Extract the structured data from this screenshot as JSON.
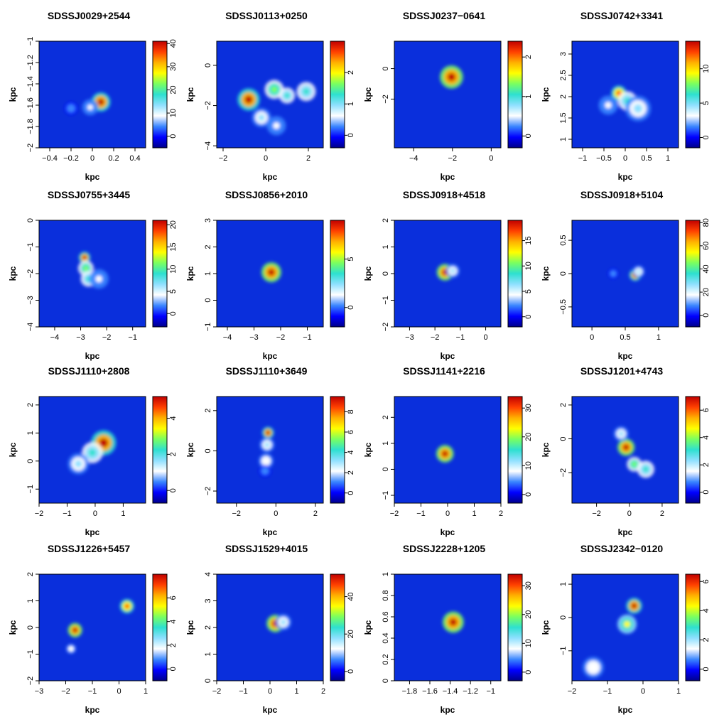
{
  "chart_data": {
    "type": "heatmap",
    "colormap": [
      "#00008b",
      "#0000ff",
      "#3a86ff",
      "#ffffff",
      "#8fe0ff",
      "#2ee0d0",
      "#7aff60",
      "#ffff00",
      "#ffb000",
      "#ff4000",
      "#c00000"
    ],
    "background": "#0a2fdc",
    "panels": [
      {
        "title": "SDSSJ0029+2544",
        "xlabel": "kpc",
        "ylabel": "kpc",
        "xlim": [
          -0.5,
          0.5
        ],
        "ylim": [
          -2.0,
          -1.0
        ],
        "xticks": [
          -0.4,
          -0.2,
          0,
          0.2,
          0.4
        ],
        "xticklabels": [
          "−0.4",
          "−0.2",
          "0",
          "0.2",
          "0.4"
        ],
        "yticks": [
          -2.0,
          -1.8,
          -1.6,
          -1.4,
          -1.2,
          -1.0
        ],
        "yticklabels": [
          "−2",
          "−1.8",
          "−1.6",
          "−1.4",
          "−1.2",
          "−1"
        ],
        "cbar_lim": [
          -5,
          41
        ],
        "cbar_ticks": [
          0,
          10,
          20,
          30,
          40
        ],
        "cbar_ticklabels": [
          "0",
          "10",
          "20",
          "30",
          "40"
        ],
        "blobs": [
          {
            "x": 0.08,
            "y": -1.57,
            "r": 0.06,
            "v": 40
          },
          {
            "x": -0.02,
            "y": -1.62,
            "r": 0.05,
            "v": 8
          },
          {
            "x": -0.2,
            "y": -1.63,
            "r": 0.04,
            "v": 4
          }
        ]
      },
      {
        "title": "SDSSJ0113+0250",
        "xlabel": "kpc",
        "ylabel": "kpc",
        "xlim": [
          -2.3,
          2.7
        ],
        "ylim": [
          -4.1,
          1.2
        ],
        "xticks": [
          -2,
          0,
          2
        ],
        "xticklabels": [
          "−2",
          "0",
          "2"
        ],
        "yticks": [
          -4,
          -2,
          0
        ],
        "yticklabels": [
          "−4",
          "−2",
          "0"
        ],
        "cbar_lim": [
          -0.4,
          3.0
        ],
        "cbar_ticks": [
          0,
          1,
          2
        ],
        "cbar_ticklabels": [
          "0",
          "1",
          "2"
        ],
        "blobs": [
          {
            "x": -0.8,
            "y": -1.7,
            "r": 0.35,
            "v": 2.9
          },
          {
            "x": 0.4,
            "y": -1.2,
            "r": 0.3,
            "v": 1.6
          },
          {
            "x": 1.0,
            "y": -1.5,
            "r": 0.25,
            "v": 1.2
          },
          {
            "x": 1.9,
            "y": -1.3,
            "r": 0.3,
            "v": 1.3
          },
          {
            "x": -0.2,
            "y": -2.6,
            "r": 0.3,
            "v": 0.8
          },
          {
            "x": 0.5,
            "y": -3.0,
            "r": 0.3,
            "v": 0.6
          }
        ]
      },
      {
        "title": "SDSSJ0237−0641",
        "xlabel": "kpc",
        "ylabel": "kpc",
        "xlim": [
          -5.0,
          0.5
        ],
        "ylim": [
          -5.2,
          1.8
        ],
        "xticks": [
          -4,
          -2,
          0
        ],
        "xticklabels": [
          "−4",
          "−2",
          "0"
        ],
        "yticks": [
          -2,
          0
        ],
        "yticklabels": [
          "−2",
          "0"
        ],
        "cbar_lim": [
          -0.3,
          2.4
        ],
        "cbar_ticks": [
          0,
          1,
          2
        ],
        "cbar_ticklabels": [
          "0",
          "1",
          "2"
        ],
        "blobs": [
          {
            "x": -2.05,
            "y": -0.55,
            "r": 0.4,
            "v": 2.4
          }
        ]
      },
      {
        "title": "SDSSJ0742+3341",
        "xlabel": "kpc",
        "ylabel": "kpc",
        "xlim": [
          -1.25,
          1.25
        ],
        "ylim": [
          0.8,
          3.3
        ],
        "xticks": [
          -1,
          -0.5,
          0,
          0.5,
          1
        ],
        "xticklabels": [
          "−1",
          "−0.5",
          "0",
          "0.5",
          "1"
        ],
        "yticks": [
          1.0,
          1.5,
          2.0,
          2.5,
          3.0
        ],
        "yticklabels": [
          "1",
          "1.5",
          "2",
          "2.5",
          "3"
        ],
        "cbar_lim": [
          -1.5,
          14
        ],
        "cbar_ticks": [
          0,
          5,
          10
        ],
        "cbar_ticklabels": [
          "0",
          "5",
          "10"
        ],
        "blobs": [
          {
            "x": -0.15,
            "y": 2.08,
            "r": 0.12,
            "v": 13
          },
          {
            "x": 0.05,
            "y": 1.9,
            "r": 0.15,
            "v": 6
          },
          {
            "x": 0.3,
            "y": 1.72,
            "r": 0.2,
            "v": 4
          },
          {
            "x": -0.4,
            "y": 1.8,
            "r": 0.15,
            "v": 3
          }
        ]
      },
      {
        "title": "SDSSJ0755+3445",
        "xlabel": "kpc",
        "ylabel": "kpc",
        "xlim": [
          -4.6,
          -0.5
        ],
        "ylim": [
          -4.0,
          0.0
        ],
        "xticks": [
          -4,
          -3,
          -2,
          -1
        ],
        "xticklabels": [
          "−4",
          "−3",
          "−2",
          "−1"
        ],
        "yticks": [
          -4,
          -3,
          -2,
          -1,
          0
        ],
        "yticklabels": [
          "−4",
          "−3",
          "−2",
          "−1",
          "0"
        ],
        "cbar_lim": [
          -3,
          21
        ],
        "cbar_ticks": [
          0,
          5,
          10,
          15,
          20
        ],
        "cbar_ticklabels": [
          "0",
          "5",
          "10",
          "15",
          "20"
        ],
        "blobs": [
          {
            "x": -2.85,
            "y": -1.4,
            "r": 0.15,
            "v": 20
          },
          {
            "x": -2.8,
            "y": -1.8,
            "r": 0.2,
            "v": 12
          },
          {
            "x": -2.7,
            "y": -2.2,
            "r": 0.2,
            "v": 8
          },
          {
            "x": -2.3,
            "y": -2.2,
            "r": 0.25,
            "v": 4
          }
        ]
      },
      {
        "title": "SDSSJ0856+2010",
        "xlabel": "kpc",
        "ylabel": "kpc",
        "xlim": [
          -4.4,
          -0.4
        ],
        "ylim": [
          -1.0,
          3.0
        ],
        "xticks": [
          -4,
          -3,
          -2,
          -1
        ],
        "xticklabels": [
          "−4",
          "−3",
          "−2",
          "−1"
        ],
        "yticks": [
          -1,
          0,
          1,
          2,
          3
        ],
        "yticklabels": [
          "−1",
          "0",
          "1",
          "2",
          "3"
        ],
        "cbar_lim": [
          -2,
          9
        ],
        "cbar_ticks": [
          0,
          5
        ],
        "cbar_ticklabels": [
          "0",
          "5"
        ],
        "blobs": [
          {
            "x": -2.35,
            "y": 1.05,
            "r": 0.25,
            "v": 9
          }
        ]
      },
      {
        "title": "SDSSJ0918+4518",
        "xlabel": "kpc",
        "ylabel": "kpc",
        "xlim": [
          -3.6,
          0.6
        ],
        "ylim": [
          -2.0,
          2.0
        ],
        "xticks": [
          -3,
          -2,
          -1,
          0
        ],
        "xticklabels": [
          "−3",
          "−2",
          "−1",
          "0"
        ],
        "yticks": [
          -2,
          -1,
          0,
          1,
          2
        ],
        "yticklabels": [
          "−2",
          "−1",
          "0",
          "1",
          "2"
        ],
        "cbar_lim": [
          -2,
          19
        ],
        "cbar_ticks": [
          0,
          5,
          10,
          15
        ],
        "cbar_ticklabels": [
          "0",
          "5",
          "10",
          "15"
        ],
        "blobs": [
          {
            "x": -1.6,
            "y": 0.05,
            "r": 0.22,
            "v": 19
          },
          {
            "x": -1.3,
            "y": 0.1,
            "r": 0.18,
            "v": 6
          }
        ]
      },
      {
        "title": "SDSSJ0918+5104",
        "xlabel": "kpc",
        "ylabel": "kpc",
        "xlim": [
          -0.3,
          1.3
        ],
        "ylim": [
          -0.8,
          0.8
        ],
        "xticks": [
          0,
          0.5,
          1
        ],
        "xticklabels": [
          "0",
          "0.5",
          "1"
        ],
        "yticks": [
          -0.5,
          0,
          0.5
        ],
        "yticklabels": [
          "−0.5",
          "0",
          "0.5"
        ],
        "cbar_lim": [
          -10,
          82
        ],
        "cbar_ticks": [
          0,
          20,
          40,
          60,
          80
        ],
        "cbar_ticklabels": [
          "0",
          "20",
          "40",
          "60",
          "80"
        ],
        "blobs": [
          {
            "x": 0.65,
            "y": -0.02,
            "r": 0.06,
            "v": 80
          },
          {
            "x": 0.7,
            "y": 0.03,
            "r": 0.06,
            "v": 30
          },
          {
            "x": 0.32,
            "y": 0.0,
            "r": 0.05,
            "v": 10
          }
        ]
      },
      {
        "title": "SDSSJ1110+2808",
        "xlabel": "kpc",
        "ylabel": "kpc",
        "xlim": [
          -2.0,
          1.8
        ],
        "ylim": [
          -1.5,
          2.3
        ],
        "xticks": [
          -2,
          -1,
          0,
          1
        ],
        "xticklabels": [
          "−2",
          "−1",
          "0",
          "1"
        ],
        "yticks": [
          -1,
          0,
          1,
          2
        ],
        "yticklabels": [
          "−1",
          "0",
          "1",
          "2"
        ],
        "cbar_lim": [
          -0.7,
          5.2
        ],
        "cbar_ticks": [
          0,
          2,
          4
        ],
        "cbar_ticklabels": [
          "0",
          "2",
          "4"
        ],
        "blobs": [
          {
            "x": 0.3,
            "y": 0.65,
            "r": 0.3,
            "v": 5
          },
          {
            "x": -0.1,
            "y": 0.3,
            "r": 0.25,
            "v": 2.5
          },
          {
            "x": -0.6,
            "y": -0.1,
            "r": 0.25,
            "v": 1.5
          }
        ]
      },
      {
        "title": "SDSSJ1110+3649",
        "xlabel": "kpc",
        "ylabel": "kpc",
        "xlim": [
          -3.0,
          2.4
        ],
        "ylim": [
          -2.6,
          2.7
        ],
        "xticks": [
          -2,
          0,
          2
        ],
        "xticklabels": [
          "−2",
          "0",
          "2"
        ],
        "yticks": [
          -2,
          0,
          2
        ],
        "yticklabels": [
          "−2",
          "0",
          "2"
        ],
        "cbar_lim": [
          -1,
          9.5
        ],
        "cbar_ticks": [
          0,
          2,
          4,
          6,
          8
        ],
        "cbar_ticklabels": [
          "0",
          "2",
          "4",
          "6",
          "8"
        ],
        "blobs": [
          {
            "x": -0.4,
            "y": 0.9,
            "r": 0.2,
            "v": 9
          },
          {
            "x": -0.45,
            "y": 0.3,
            "r": 0.25,
            "v": 3
          },
          {
            "x": -0.5,
            "y": -0.5,
            "r": 0.25,
            "v": 2.5
          },
          {
            "x": -0.55,
            "y": -1.0,
            "r": 0.2,
            "v": 1.5
          }
        ]
      },
      {
        "title": "SDSSJ1141+2216",
        "xlabel": "kpc",
        "ylabel": "kpc",
        "xlim": [
          -2.0,
          2.0
        ],
        "ylim": [
          -1.3,
          2.8
        ],
        "xticks": [
          -2,
          -1,
          0,
          1,
          2
        ],
        "xticklabels": [
          "−2",
          "−1",
          "0",
          "1",
          "2"
        ],
        "yticks": [
          -1,
          0,
          1,
          2
        ],
        "yticklabels": [
          "−1",
          "0",
          "1",
          "2"
        ],
        "cbar_lim": [
          -3,
          34
        ],
        "cbar_ticks": [
          0,
          10,
          20,
          30
        ],
        "cbar_ticklabels": [
          "0",
          "10",
          "20",
          "30"
        ],
        "blobs": [
          {
            "x": -0.1,
            "y": 0.6,
            "r": 0.22,
            "v": 34
          }
        ]
      },
      {
        "title": "SDSSJ1201+4743",
        "xlabel": "kpc",
        "ylabel": "kpc",
        "xlim": [
          -3.5,
          3.0
        ],
        "ylim": [
          -3.8,
          2.5
        ],
        "xticks": [
          -2,
          0,
          2
        ],
        "xticklabels": [
          "−2",
          "0",
          "2"
        ],
        "yticks": [
          -2,
          0,
          2
        ],
        "yticklabels": [
          "−2",
          "0",
          "2"
        ],
        "cbar_lim": [
          -0.8,
          7
        ],
        "cbar_ticks": [
          0,
          2,
          4,
          6
        ],
        "cbar_ticklabels": [
          "0",
          "2",
          "4",
          "6"
        ],
        "blobs": [
          {
            "x": -0.2,
            "y": -0.5,
            "r": 0.35,
            "v": 7
          },
          {
            "x": 0.3,
            "y": -1.5,
            "r": 0.3,
            "v": 4
          },
          {
            "x": 1.0,
            "y": -1.8,
            "r": 0.35,
            "v": 3
          },
          {
            "x": -0.5,
            "y": 0.3,
            "r": 0.3,
            "v": 2
          }
        ]
      },
      {
        "title": "SDSSJ1226+5457",
        "xlabel": "kpc",
        "ylabel": "kpc",
        "xlim": [
          -3.0,
          1.0
        ],
        "ylim": [
          -2.0,
          2.0
        ],
        "xticks": [
          -3,
          -2,
          -1,
          0,
          1
        ],
        "xticklabels": [
          "−3",
          "−2",
          "−1",
          "0",
          "1"
        ],
        "yticks": [
          -2,
          -1,
          0,
          1,
          2
        ],
        "yticklabels": [
          "−2",
          "−1",
          "0",
          "1",
          "2"
        ],
        "cbar_lim": [
          -1,
          8
        ],
        "cbar_ticks": [
          0,
          2,
          4,
          6
        ],
        "cbar_ticklabels": [
          "0",
          "2",
          "4",
          "6"
        ],
        "blobs": [
          {
            "x": -1.65,
            "y": -0.1,
            "r": 0.18,
            "v": 8
          },
          {
            "x": 0.3,
            "y": 0.8,
            "r": 0.18,
            "v": 7
          },
          {
            "x": -1.8,
            "y": -0.8,
            "r": 0.12,
            "v": 2
          }
        ]
      },
      {
        "title": "SDSSJ1529+4015",
        "xlabel": "kpc",
        "ylabel": "kpc",
        "xlim": [
          -2.0,
          2.0
        ],
        "ylim": [
          0.0,
          4.0
        ],
        "xticks": [
          -2,
          -1,
          0,
          1,
          2
        ],
        "xticklabels": [
          "−2",
          "−1",
          "0",
          "1",
          "2"
        ],
        "yticks": [
          0,
          1,
          2,
          3,
          4
        ],
        "yticklabels": [
          "0",
          "1",
          "2",
          "3",
          "4"
        ],
        "cbar_lim": [
          -5,
          52
        ],
        "cbar_ticks": [
          0,
          20,
          40
        ],
        "cbar_ticklabels": [
          "0",
          "20",
          "40"
        ],
        "blobs": [
          {
            "x": 0.2,
            "y": 2.15,
            "r": 0.22,
            "v": 52
          },
          {
            "x": 0.5,
            "y": 2.2,
            "r": 0.2,
            "v": 15
          }
        ]
      },
      {
        "title": "SDSSJ2228+1205",
        "xlabel": "kpc",
        "ylabel": "kpc",
        "xlim": [
          -1.95,
          -0.9
        ],
        "ylim": [
          0.0,
          1.0
        ],
        "xticks": [
          -1.8,
          -1.6,
          -1.4,
          -1.2,
          -1.0
        ],
        "xticklabels": [
          "−1.8",
          "−1.6",
          "−1.4",
          "−1.2",
          "−1"
        ],
        "yticks": [
          0,
          0.2,
          0.4,
          0.6,
          0.8,
          1.0
        ],
        "yticklabels": [
          "0",
          "0.2",
          "0.4",
          "0.6",
          "0.8",
          "1"
        ],
        "cbar_lim": [
          -3,
          34
        ],
        "cbar_ticks": [
          0,
          10,
          20,
          30
        ],
        "cbar_ticklabels": [
          "0",
          "10",
          "20",
          "30"
        ],
        "blobs": [
          {
            "x": -1.37,
            "y": 0.55,
            "r": 0.07,
            "v": 34
          }
        ]
      },
      {
        "title": "SDSSJ2342−0120",
        "xlabel": "kpc",
        "ylabel": "kpc",
        "xlim": [
          -2.0,
          1.0
        ],
        "ylim": [
          -1.9,
          1.3
        ],
        "xticks": [
          -2,
          -1,
          0,
          1
        ],
        "xticklabels": [
          "−2",
          "−1",
          "0",
          "1"
        ],
        "yticks": [
          -1,
          0,
          1
        ],
        "yticklabels": [
          "−1",
          "0",
          "1"
        ],
        "cbar_lim": [
          -0.8,
          6.5
        ],
        "cbar_ticks": [
          0,
          2,
          4,
          6
        ],
        "cbar_ticklabels": [
          "0",
          "2",
          "4",
          "6"
        ],
        "blobs": [
          {
            "x": -0.25,
            "y": 0.35,
            "r": 0.15,
            "v": 6.3
          },
          {
            "x": -0.45,
            "y": -0.2,
            "r": 0.18,
            "v": 4
          },
          {
            "x": -1.4,
            "y": -1.5,
            "r": 0.2,
            "v": 1.5
          }
        ]
      }
    ]
  }
}
